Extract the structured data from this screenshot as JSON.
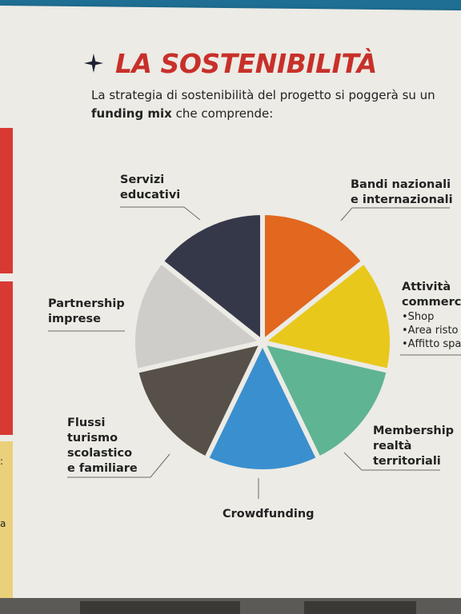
{
  "title": "LA SOSTENIBILITÀ",
  "intro": {
    "pre": "La strategia di sostenibilità del progetto si poggerà su un",
    "bold": "funding mix",
    "post": "che comprende:"
  },
  "labels": {
    "servizi": [
      "Servizi",
      "educativi"
    ],
    "bandi": [
      "Bandi nazionali",
      "e internazionali"
    ],
    "attivita": {
      "title": [
        "Attività",
        "commerci"
      ],
      "bullets": [
        "•Shop",
        "•Area risto",
        "•Affitto spa"
      ]
    },
    "membership": [
      "Membership",
      "realtà",
      "territoriali"
    ],
    "crowdfunding": "Crowdfunding",
    "flussi": [
      "Flussi",
      "turismo",
      "scolastico",
      "e familiare"
    ],
    "partnership": [
      "Partnership",
      "imprese"
    ]
  },
  "wedges": [
    {
      "name": "bandi-nazionali-wedge",
      "color": "#e2671f"
    },
    {
      "name": "attivita-commerciali-wedge",
      "color": "#e9c81c"
    },
    {
      "name": "membership-wedge",
      "color": "#5fb494"
    },
    {
      "name": "crowdfunding-wedge",
      "color": "#3a8fcf"
    },
    {
      "name": "flussi-turismo-wedge",
      "color": "#575049"
    },
    {
      "name": "partnership-imprese-wedge",
      "color": "#cfcdc9"
    },
    {
      "name": "servizi-educativi-wedge",
      "color": "#353849"
    }
  ],
  "side_fragments": {
    "colors": [
      "#d83a33",
      "#d83a33",
      "#ead07a"
    ],
    "texts": [
      ":",
      "a"
    ]
  },
  "icons": {
    "title_icon": "sparkle-icon"
  }
}
